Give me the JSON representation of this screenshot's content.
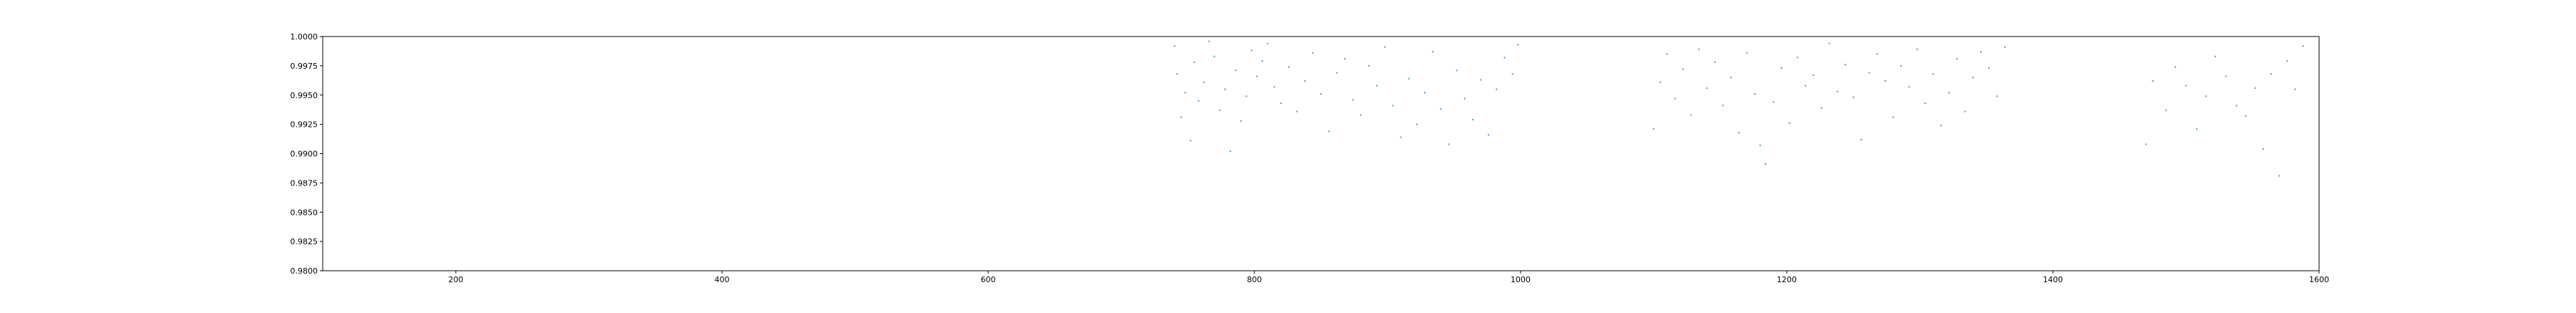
{
  "chart_data": {
    "type": "scatter",
    "title": "",
    "xlabel": "",
    "ylabel": "",
    "xlim": [
      100,
      1600
    ],
    "ylim": [
      0.98,
      1.0
    ],
    "x_ticks": [
      200,
      400,
      600,
      800,
      1000,
      1200,
      1400,
      1600
    ],
    "x_tick_labels": [
      "200",
      "400",
      "600",
      "800",
      "1000",
      "1200",
      "1400",
      "1600"
    ],
    "y_ticks": [
      0.98,
      0.9825,
      0.985,
      0.9875,
      0.99,
      0.9925,
      0.995,
      0.9975,
      1.0
    ],
    "y_tick_labels": [
      "0.9800",
      "0.9825",
      "0.9850",
      "0.9875",
      "0.9900",
      "0.9925",
      "0.9950",
      "0.9975",
      "1.0000"
    ],
    "grid": false,
    "legend": false,
    "marker_color": "#1f77b4",
    "series": [
      {
        "x": [
          740,
          742,
          745,
          748,
          752,
          755,
          758,
          762,
          766,
          770,
          774,
          778,
          782,
          786,
          790,
          794,
          798,
          802,
          806,
          810,
          815,
          820,
          826,
          832,
          838,
          844,
          850,
          856,
          862,
          868,
          874,
          880,
          886,
          892,
          898,
          904,
          910,
          916,
          922,
          928,
          934,
          940,
          946,
          952,
          958,
          964,
          970,
          976,
          982,
          988,
          994,
          998,
          1100,
          1105,
          1110,
          1116,
          1122,
          1128,
          1134,
          1140,
          1146,
          1152,
          1158,
          1164,
          1170,
          1176,
          1180,
          1184,
          1190,
          1196,
          1202,
          1208,
          1214,
          1220,
          1226,
          1232,
          1238,
          1244,
          1250,
          1256,
          1262,
          1268,
          1274,
          1280,
          1286,
          1292,
          1298,
          1304,
          1310,
          1316,
          1322,
          1328,
          1334,
          1340,
          1346,
          1352,
          1358,
          1364,
          1470,
          1475,
          1485,
          1492,
          1500,
          1508,
          1515,
          1522,
          1530,
          1538,
          1545,
          1552,
          1558,
          1564,
          1570,
          1576,
          1582,
          1588
        ],
        "y": [
          0.9992,
          0.9968,
          0.9931,
          0.9952,
          0.9911,
          0.9978,
          0.9945,
          0.9961,
          0.9996,
          0.9983,
          0.9937,
          0.9955,
          0.9902,
          0.9971,
          0.9928,
          0.9949,
          0.9988,
          0.9966,
          0.9979,
          0.9994,
          0.9957,
          0.9943,
          0.9974,
          0.9936,
          0.9962,
          0.9986,
          0.9951,
          0.9919,
          0.9969,
          0.9981,
          0.9946,
          0.9933,
          0.9975,
          0.9958,
          0.9991,
          0.9941,
          0.9914,
          0.9964,
          0.9925,
          0.9952,
          0.9987,
          0.9938,
          0.9908,
          0.9971,
          0.9947,
          0.9929,
          0.9963,
          0.9916,
          0.9955,
          0.9982,
          0.9968,
          0.9993,
          0.9921,
          0.9961,
          0.9985,
          0.9947,
          0.9972,
          0.9933,
          0.9989,
          0.9956,
          0.9978,
          0.9941,
          0.9965,
          0.9918,
          0.9986,
          0.9951,
          0.9907,
          0.9891,
          0.9944,
          0.9973,
          0.9926,
          0.9982,
          0.9958,
          0.9967,
          0.9939,
          0.9994,
          0.9953,
          0.9976,
          0.9948,
          0.9912,
          0.9969,
          0.9985,
          0.9962,
          0.9931,
          0.9975,
          0.9957,
          0.9989,
          0.9943,
          0.9968,
          0.9924,
          0.9952,
          0.9981,
          0.9936,
          0.9965,
          0.9987,
          0.9973,
          0.9949,
          0.9991,
          0.9908,
          0.9962,
          0.9937,
          0.9974,
          0.9958,
          0.9921,
          0.9949,
          0.9983,
          0.9966,
          0.9941,
          0.9932,
          0.9956,
          0.9904,
          0.9968,
          0.9881,
          0.9979,
          0.9955,
          0.9992
        ]
      }
    ]
  }
}
